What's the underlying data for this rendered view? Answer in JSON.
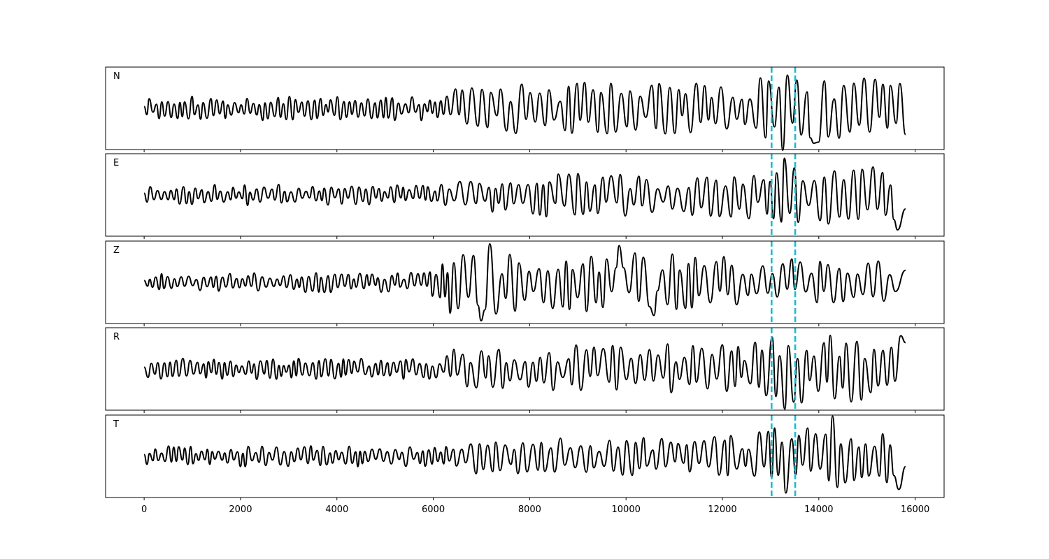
{
  "chart_data": {
    "type": "line",
    "title": "",
    "xlabel": "",
    "ylabel": "",
    "xlim": [
      -800,
      16600
    ],
    "x_ticks": [
      0,
      2000,
      4000,
      6000,
      8000,
      10000,
      12000,
      14000,
      16000
    ],
    "x_tick_labels": [
      "0",
      "2000",
      "4000",
      "6000",
      "8000",
      "10000",
      "12000",
      "14000",
      "16000"
    ],
    "x_end": 15800,
    "marker_lines": [
      {
        "x": 13020,
        "color": "#17becf",
        "style": "dashed"
      },
      {
        "x": 13510,
        "color": "#17becf",
        "style": "dashed"
      }
    ],
    "line_color": "#000000",
    "legend": "none",
    "grid": false,
    "shared_x_axis": true,
    "series": [
      {
        "name": "N",
        "seed": 11,
        "envelope": [
          [
            0,
            0.35
          ],
          [
            6300,
            0.35
          ],
          [
            6500,
            0.7
          ],
          [
            12500,
            0.8
          ],
          [
            12800,
            1.0
          ],
          [
            15800,
            1.0
          ]
        ],
        "features": [
          {
            "x": 13290,
            "v": -1.2
          },
          {
            "x": 13350,
            "v": 0.95
          },
          {
            "x": 13880,
            "v": -1.0
          },
          {
            "x": 15800,
            "v": -0.75
          }
        ]
      },
      {
        "name": "E",
        "seed": 23,
        "envelope": [
          [
            0,
            0.3
          ],
          [
            6200,
            0.3
          ],
          [
            6500,
            0.6
          ],
          [
            12500,
            0.7
          ],
          [
            13200,
            1.1
          ],
          [
            15800,
            0.9
          ]
        ],
        "features": [
          {
            "x": 13270,
            "v": 1.05
          },
          {
            "x": 15650,
            "v": -1.0
          },
          {
            "x": 15800,
            "v": -0.4
          }
        ]
      },
      {
        "name": "Z",
        "seed": 37,
        "envelope": [
          [
            0,
            0.3
          ],
          [
            5900,
            0.3
          ],
          [
            6400,
            1.0
          ],
          [
            7100,
            1.0
          ],
          [
            7500,
            0.85
          ],
          [
            11000,
            0.85
          ],
          [
            12800,
            0.7
          ],
          [
            15800,
            0.6
          ]
        ],
        "features": [
          {
            "x": 7010,
            "v": -1.1
          },
          {
            "x": 7140,
            "v": 1.1
          },
          {
            "x": 9850,
            "v": 1.05
          },
          {
            "x": 10550,
            "v": -0.95
          }
        ]
      },
      {
        "name": "R",
        "seed": 51,
        "envelope": [
          [
            0,
            0.3
          ],
          [
            6200,
            0.3
          ],
          [
            6500,
            0.65
          ],
          [
            12500,
            0.75
          ],
          [
            13300,
            1.0
          ],
          [
            15800,
            0.9
          ]
        ],
        "features": [
          {
            "x": 13310,
            "v": -1.15
          },
          {
            "x": 13480,
            "v": -0.95
          },
          {
            "x": 15660,
            "v": 0.95
          },
          {
            "x": 15800,
            "v": 0.75
          }
        ]
      },
      {
        "name": "T",
        "seed": 67,
        "envelope": [
          [
            0,
            0.3
          ],
          [
            6300,
            0.3
          ],
          [
            6500,
            0.5
          ],
          [
            12500,
            0.6
          ],
          [
            13200,
            1.0
          ],
          [
            15800,
            0.85
          ]
        ],
        "features": [
          {
            "x": 13310,
            "v": -1.05
          },
          {
            "x": 14310,
            "v": 1.15
          },
          {
            "x": 15640,
            "v": -0.95
          }
        ]
      }
    ]
  }
}
